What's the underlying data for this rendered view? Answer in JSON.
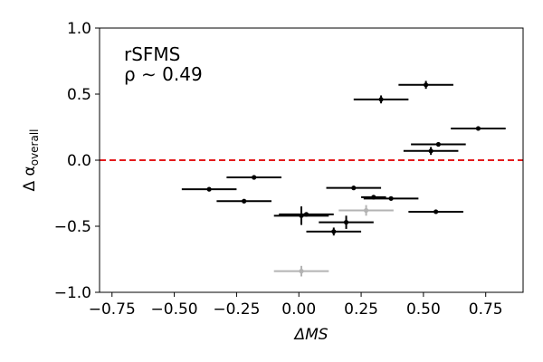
{
  "chart_data": {
    "type": "scatter",
    "xlabel": "ΔMS",
    "ylabel_main": "Δ α",
    "ylabel_sub": "overall",
    "xlim": [
      -0.8,
      0.9
    ],
    "ylim": [
      -1.0,
      1.0
    ],
    "xticks": [
      -0.75,
      -0.5,
      -0.25,
      0.0,
      0.25,
      0.5,
      0.75
    ],
    "xtick_labels": [
      "−0.75",
      "−0.50",
      "−0.25",
      "0.00",
      "0.25",
      "0.50",
      "0.75"
    ],
    "yticks": [
      -1.0,
      -0.5,
      0.0,
      0.5,
      1.0
    ],
    "ytick_labels": [
      "−1.0",
      "−0.5",
      "0.0",
      "0.5",
      "1.0"
    ],
    "annotation_line1": "rSFMS",
    "annotation_line2": "ρ ∼ 0.49",
    "reference_line": {
      "y": 0.0,
      "color": "#e41a1c",
      "style": "dashed"
    },
    "series": [
      {
        "name": "black",
        "color": "#000000",
        "points": [
          {
            "x": 0.51,
            "y": 0.57,
            "xerr": 0.11,
            "yerr": 0.03
          },
          {
            "x": 0.33,
            "y": 0.46,
            "xerr": 0.11,
            "yerr": 0.03
          },
          {
            "x": 0.72,
            "y": 0.24,
            "xerr": 0.11,
            "yerr": 0.01
          },
          {
            "x": 0.56,
            "y": 0.12,
            "xerr": 0.11,
            "yerr": 0.01
          },
          {
            "x": 0.53,
            "y": 0.07,
            "xerr": 0.11,
            "yerr": 0.03
          },
          {
            "x": -0.18,
            "y": -0.13,
            "xerr": 0.11,
            "yerr": 0.01
          },
          {
            "x": -0.36,
            "y": -0.22,
            "xerr": 0.11,
            "yerr": 0.01
          },
          {
            "x": 0.22,
            "y": -0.21,
            "xerr": 0.11,
            "yerr": 0.01
          },
          {
            "x": -0.22,
            "y": -0.31,
            "xerr": 0.11,
            "yerr": 0.01
          },
          {
            "x": 0.3,
            "y": -0.28,
            "xerr": 0.05,
            "yerr": 0.01
          },
          {
            "x": 0.37,
            "y": -0.29,
            "xerr": 0.11,
            "yerr": 0.01
          },
          {
            "x": 0.55,
            "y": -0.39,
            "xerr": 0.11,
            "yerr": 0.01
          },
          {
            "x": 0.01,
            "y": -0.42,
            "xerr": 0.11,
            "yerr": 0.07
          },
          {
            "x": 0.03,
            "y": -0.41,
            "xerr": 0.11,
            "yerr": 0.01
          },
          {
            "x": 0.19,
            "y": -0.47,
            "xerr": 0.11,
            "yerr": 0.05
          },
          {
            "x": 0.14,
            "y": -0.54,
            "xerr": 0.11,
            "yerr": 0.03
          }
        ]
      },
      {
        "name": "grey",
        "color": "#b3b3b3",
        "points": [
          {
            "x": 0.27,
            "y": -0.38,
            "xerr": 0.11,
            "yerr": 0.04
          },
          {
            "x": 0.01,
            "y": -0.84,
            "xerr": 0.11,
            "yerr": 0.04
          }
        ]
      }
    ]
  }
}
